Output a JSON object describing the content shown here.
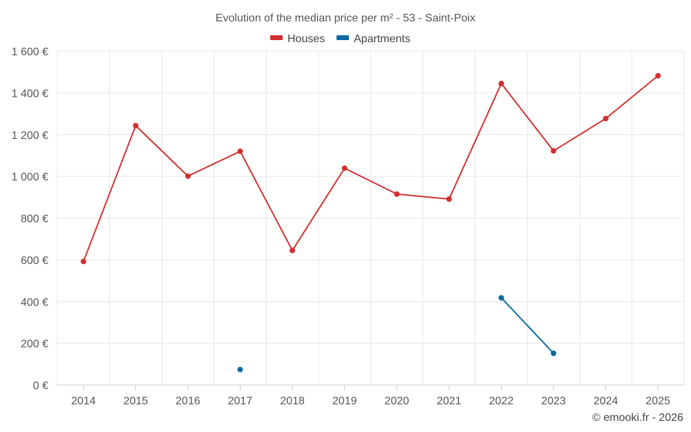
{
  "chart_data": {
    "type": "line",
    "title": "Evolution of the median price per m² - 53 - Saint-Poix",
    "categories": [
      "2014",
      "2015",
      "2016",
      "2017",
      "2018",
      "2019",
      "2020",
      "2021",
      "2022",
      "2023",
      "2024",
      "2025"
    ],
    "series": [
      {
        "name": "Houses",
        "color": "#d32f2f",
        "values": [
          592,
          1243,
          1001,
          1120,
          645,
          1039,
          915,
          891,
          1445,
          1122,
          1277,
          1482
        ]
      },
      {
        "name": "Apartments",
        "color": "#0b6aa2",
        "values": [
          null,
          null,
          null,
          74,
          null,
          null,
          null,
          null,
          418,
          152,
          null,
          null
        ]
      }
    ],
    "ylim": [
      0,
      1600
    ],
    "yticks": [
      0,
      200,
      400,
      600,
      800,
      1000,
      1200,
      1400,
      1600
    ],
    "ytick_labels": [
      "0 €",
      "200 €",
      "400 €",
      "600 €",
      "800 €",
      "1 000 €",
      "1 200 €",
      "1 400 €",
      "1 600 €"
    ],
    "xlabel": "",
    "ylabel": "",
    "grid": true,
    "legend_position": "top-center"
  },
  "credit": "© emooki.fr - 2026"
}
